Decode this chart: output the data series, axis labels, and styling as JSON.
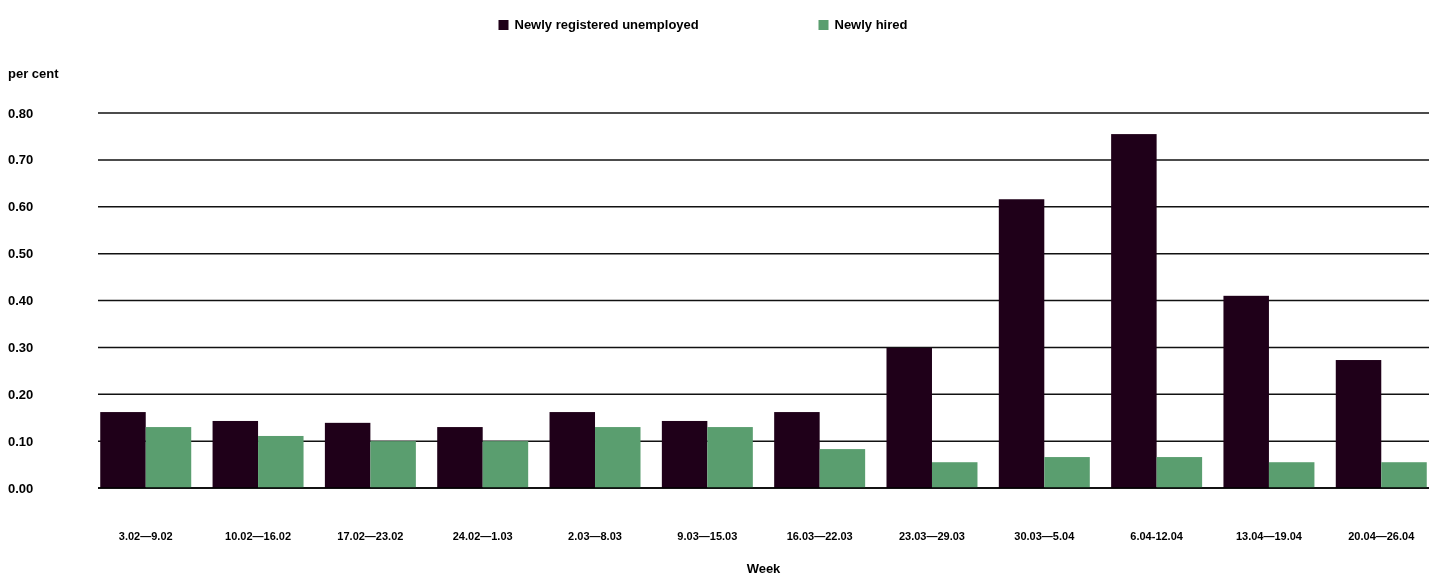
{
  "chart_data": {
    "type": "bar",
    "xlabel": "Week",
    "ylabel": "per cent",
    "categories": [
      "3.02—9.02",
      "10.02—16.02",
      "17.02—23.02",
      "24.02—1.03",
      "2.03—8.03",
      "9.03—15.03",
      "16.03—22.03",
      "23.03—29.03",
      "30.03—5.04",
      "6.04-12.04",
      "13.04—19.04",
      "20.04—26.04"
    ],
    "series": [
      {
        "name": "Newly registered unemployed",
        "color": "#1f0019",
        "values": [
          0.162,
          0.143,
          0.139,
          0.13,
          0.162,
          0.143,
          0.162,
          0.299,
          0.616,
          0.755,
          0.41,
          0.273
        ]
      },
      {
        "name": "Newly hired",
        "color": "#5a9e6f",
        "values": [
          0.13,
          0.111,
          0.1,
          0.1,
          0.13,
          0.13,
          0.083,
          0.055,
          0.066,
          0.066,
          0.055,
          0.055
        ]
      }
    ],
    "ylim": [
      0,
      0.8
    ],
    "yticks": [
      {
        "value": 0,
        "label": "0.00"
      },
      {
        "value": 0.1,
        "label": "0.10"
      },
      {
        "value": 0.2,
        "label": "0.20"
      },
      {
        "value": 0.3,
        "label": "0.30"
      },
      {
        "value": 0.4,
        "label": "0.40"
      },
      {
        "value": 0.5,
        "label": "0.50"
      },
      {
        "value": 0.6,
        "label": "0.60"
      },
      {
        "value": 0.7,
        "label": "0.70"
      },
      {
        "value": 0.8,
        "label": "0.80"
      }
    ],
    "grid": "y",
    "legend": "top"
  }
}
